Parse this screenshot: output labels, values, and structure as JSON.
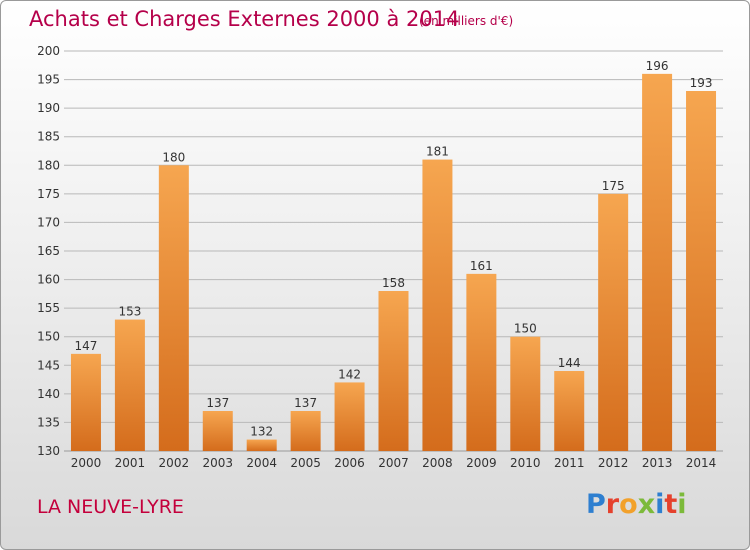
{
  "header": {
    "title": "Achats et Charges Externes 2000 à 2014",
    "unit": "(en milliers d'€)"
  },
  "footer": {
    "place": "LA NEUVE-LYRE",
    "brand_letters": [
      {
        "ch": "P",
        "color": "#2e7fd0"
      },
      {
        "ch": "r",
        "color": "#e5412d"
      },
      {
        "ch": "o",
        "color": "#f2a12b"
      },
      {
        "ch": "x",
        "color": "#7cba3a"
      },
      {
        "ch": "i",
        "color": "#2e7fd0"
      },
      {
        "ch": "t",
        "color": "#e5412d"
      },
      {
        "ch": "i",
        "color": "#7cba3a"
      }
    ]
  },
  "colors": {
    "bar_light": "#f6a650",
    "bar_dark": "#d46c1c",
    "grid": "#b8b8b8",
    "axis_text": "#333333",
    "title": "#b5004a"
  },
  "chart_data": {
    "type": "bar",
    "title": "Achats et Charges Externes 2000 à 2014",
    "subtitle": "(en milliers d'€)",
    "categories": [
      "2000",
      "2001",
      "2002",
      "2003",
      "2004",
      "2005",
      "2006",
      "2007",
      "2008",
      "2009",
      "2010",
      "2011",
      "2012",
      "2013",
      "2014"
    ],
    "values": [
      147,
      153,
      180,
      137,
      132,
      137,
      142,
      158,
      181,
      161,
      150,
      144,
      175,
      196,
      193
    ],
    "ylim": [
      130,
      200
    ],
    "yticks": [
      130,
      135,
      140,
      145,
      150,
      155,
      160,
      165,
      170,
      175,
      180,
      185,
      190,
      195,
      200
    ],
    "grid": true,
    "data_labels": true
  }
}
